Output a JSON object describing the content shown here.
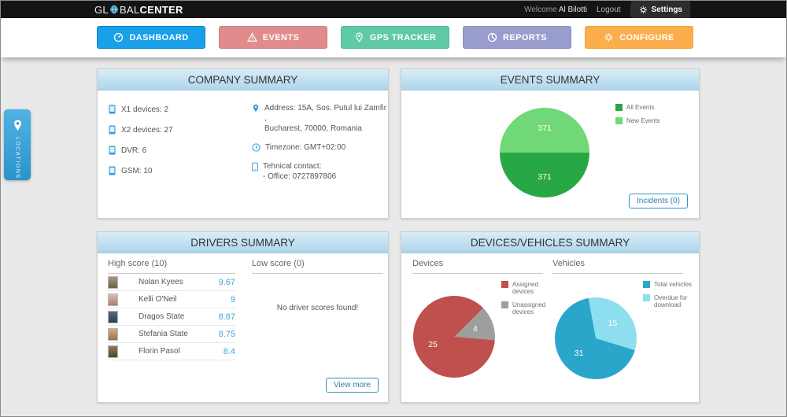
{
  "topbar": {
    "logo": {
      "part1": "GL",
      "part2": "BAL",
      "part3": "CENTER"
    },
    "welcome_label": "Welcome",
    "user_name": "Al Bilotti",
    "logout_label": "Logout",
    "settings_label": "Settings"
  },
  "nav": {
    "dashboard": "DASHBOARD",
    "events": "EVENTS",
    "gps_tracker": "GPS TRACKER",
    "reports": "REPORTS",
    "configure": "CONFIGURE"
  },
  "locations_tab": {
    "label": "LOCATIONS"
  },
  "panels": {
    "company": {
      "title": "COMPANY SUMMARY",
      "device_counts": [
        "X1 devices: 2",
        "X2 devices: 27",
        "DVR: 6",
        "GSM: 10"
      ],
      "address_line1": "Address: 15A, Sos. Putul lui Zamfir ,",
      "address_line2": "Bucharest, 70000, Romania",
      "timezone": "Timezone: GMT+02:00",
      "contact_line1": "Tehnical contact:",
      "contact_line2": "- Office: 0727897806"
    },
    "events": {
      "title": "EVENTS SUMMARY",
      "incidents_button": "Incidents (0)"
    },
    "drivers": {
      "title": "DRIVERS SUMMARY",
      "high_score_heading": "High score (10)",
      "low_score_heading": "Low score (0)",
      "no_scores_message": "No driver scores found!",
      "view_more_button": "View more",
      "high_scores": [
        {
          "name": "Nolan Kyees",
          "score": "9.67"
        },
        {
          "name": "Kelli O'Neil",
          "score": "9"
        },
        {
          "name": "Dragos State",
          "score": "8.87"
        },
        {
          "name": "Stefania State",
          "score": "8.75"
        },
        {
          "name": "Florin Pasol",
          "score": "8.4"
        }
      ]
    },
    "devices_vehicles": {
      "title": "DEVICES/VEHICLES SUMMARY",
      "devices_heading": "Devices",
      "vehicles_heading": "Vehicles"
    }
  },
  "chart_data": [
    {
      "id": "events",
      "type": "pie",
      "title": "Events Summary",
      "labels": [
        "All Events",
        "New Events"
      ],
      "values": [
        371,
        371
      ],
      "colors": [
        "#28a745",
        "#71d877"
      ],
      "start_angle": 90,
      "legend_position": "top-right"
    },
    {
      "id": "devices",
      "type": "pie",
      "title": "Devices",
      "labels": [
        "Assigned devices",
        "Unassigned devices"
      ],
      "values": [
        25,
        4
      ],
      "colors": [
        "#c0504d",
        "#9e9e9e"
      ],
      "start_angle": 95,
      "legend_position": "right"
    },
    {
      "id": "vehicles",
      "type": "pie",
      "title": "Vehicles",
      "labels": [
        "Total vehicles",
        "Overdue for download"
      ],
      "values": [
        31,
        15
      ],
      "colors": [
        "#2ba6cb",
        "#8ddeee"
      ],
      "start_angle": 107,
      "legend_position": "right"
    }
  ]
}
